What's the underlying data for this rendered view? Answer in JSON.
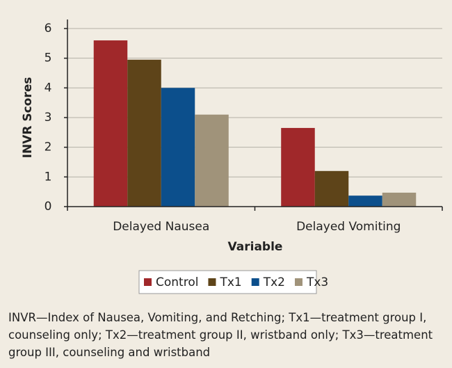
{
  "chart_data": {
    "type": "bar",
    "categories": [
      "Delayed Nausea",
      "Delayed Vomiting"
    ],
    "series": [
      {
        "name": "Control",
        "color": "#a0282a",
        "values": [
          5.6,
          2.65
        ]
      },
      {
        "name": "Tx1",
        "color": "#5e4419",
        "values": [
          4.95,
          1.2
        ]
      },
      {
        "name": "Tx2",
        "color": "#0c4f8c",
        "values": [
          4.0,
          0.37
        ]
      },
      {
        "name": "Tx3",
        "color": "#a0937a",
        "values": [
          3.1,
          0.47
        ]
      }
    ],
    "ylabel": "INVR Scores",
    "xlabel": "Variable",
    "ylim": [
      0,
      6
    ],
    "yticks": [
      0,
      1,
      2,
      3,
      4,
      5,
      6
    ],
    "grid": true,
    "legend": "bottom",
    "footnote": "INVR—Index of Nausea, Vomiting, and Retching; Tx1—treatment group I, counseling only; Tx2—treatment group II, wristband only; Tx3—treatment group III, counseling and wristband"
  }
}
